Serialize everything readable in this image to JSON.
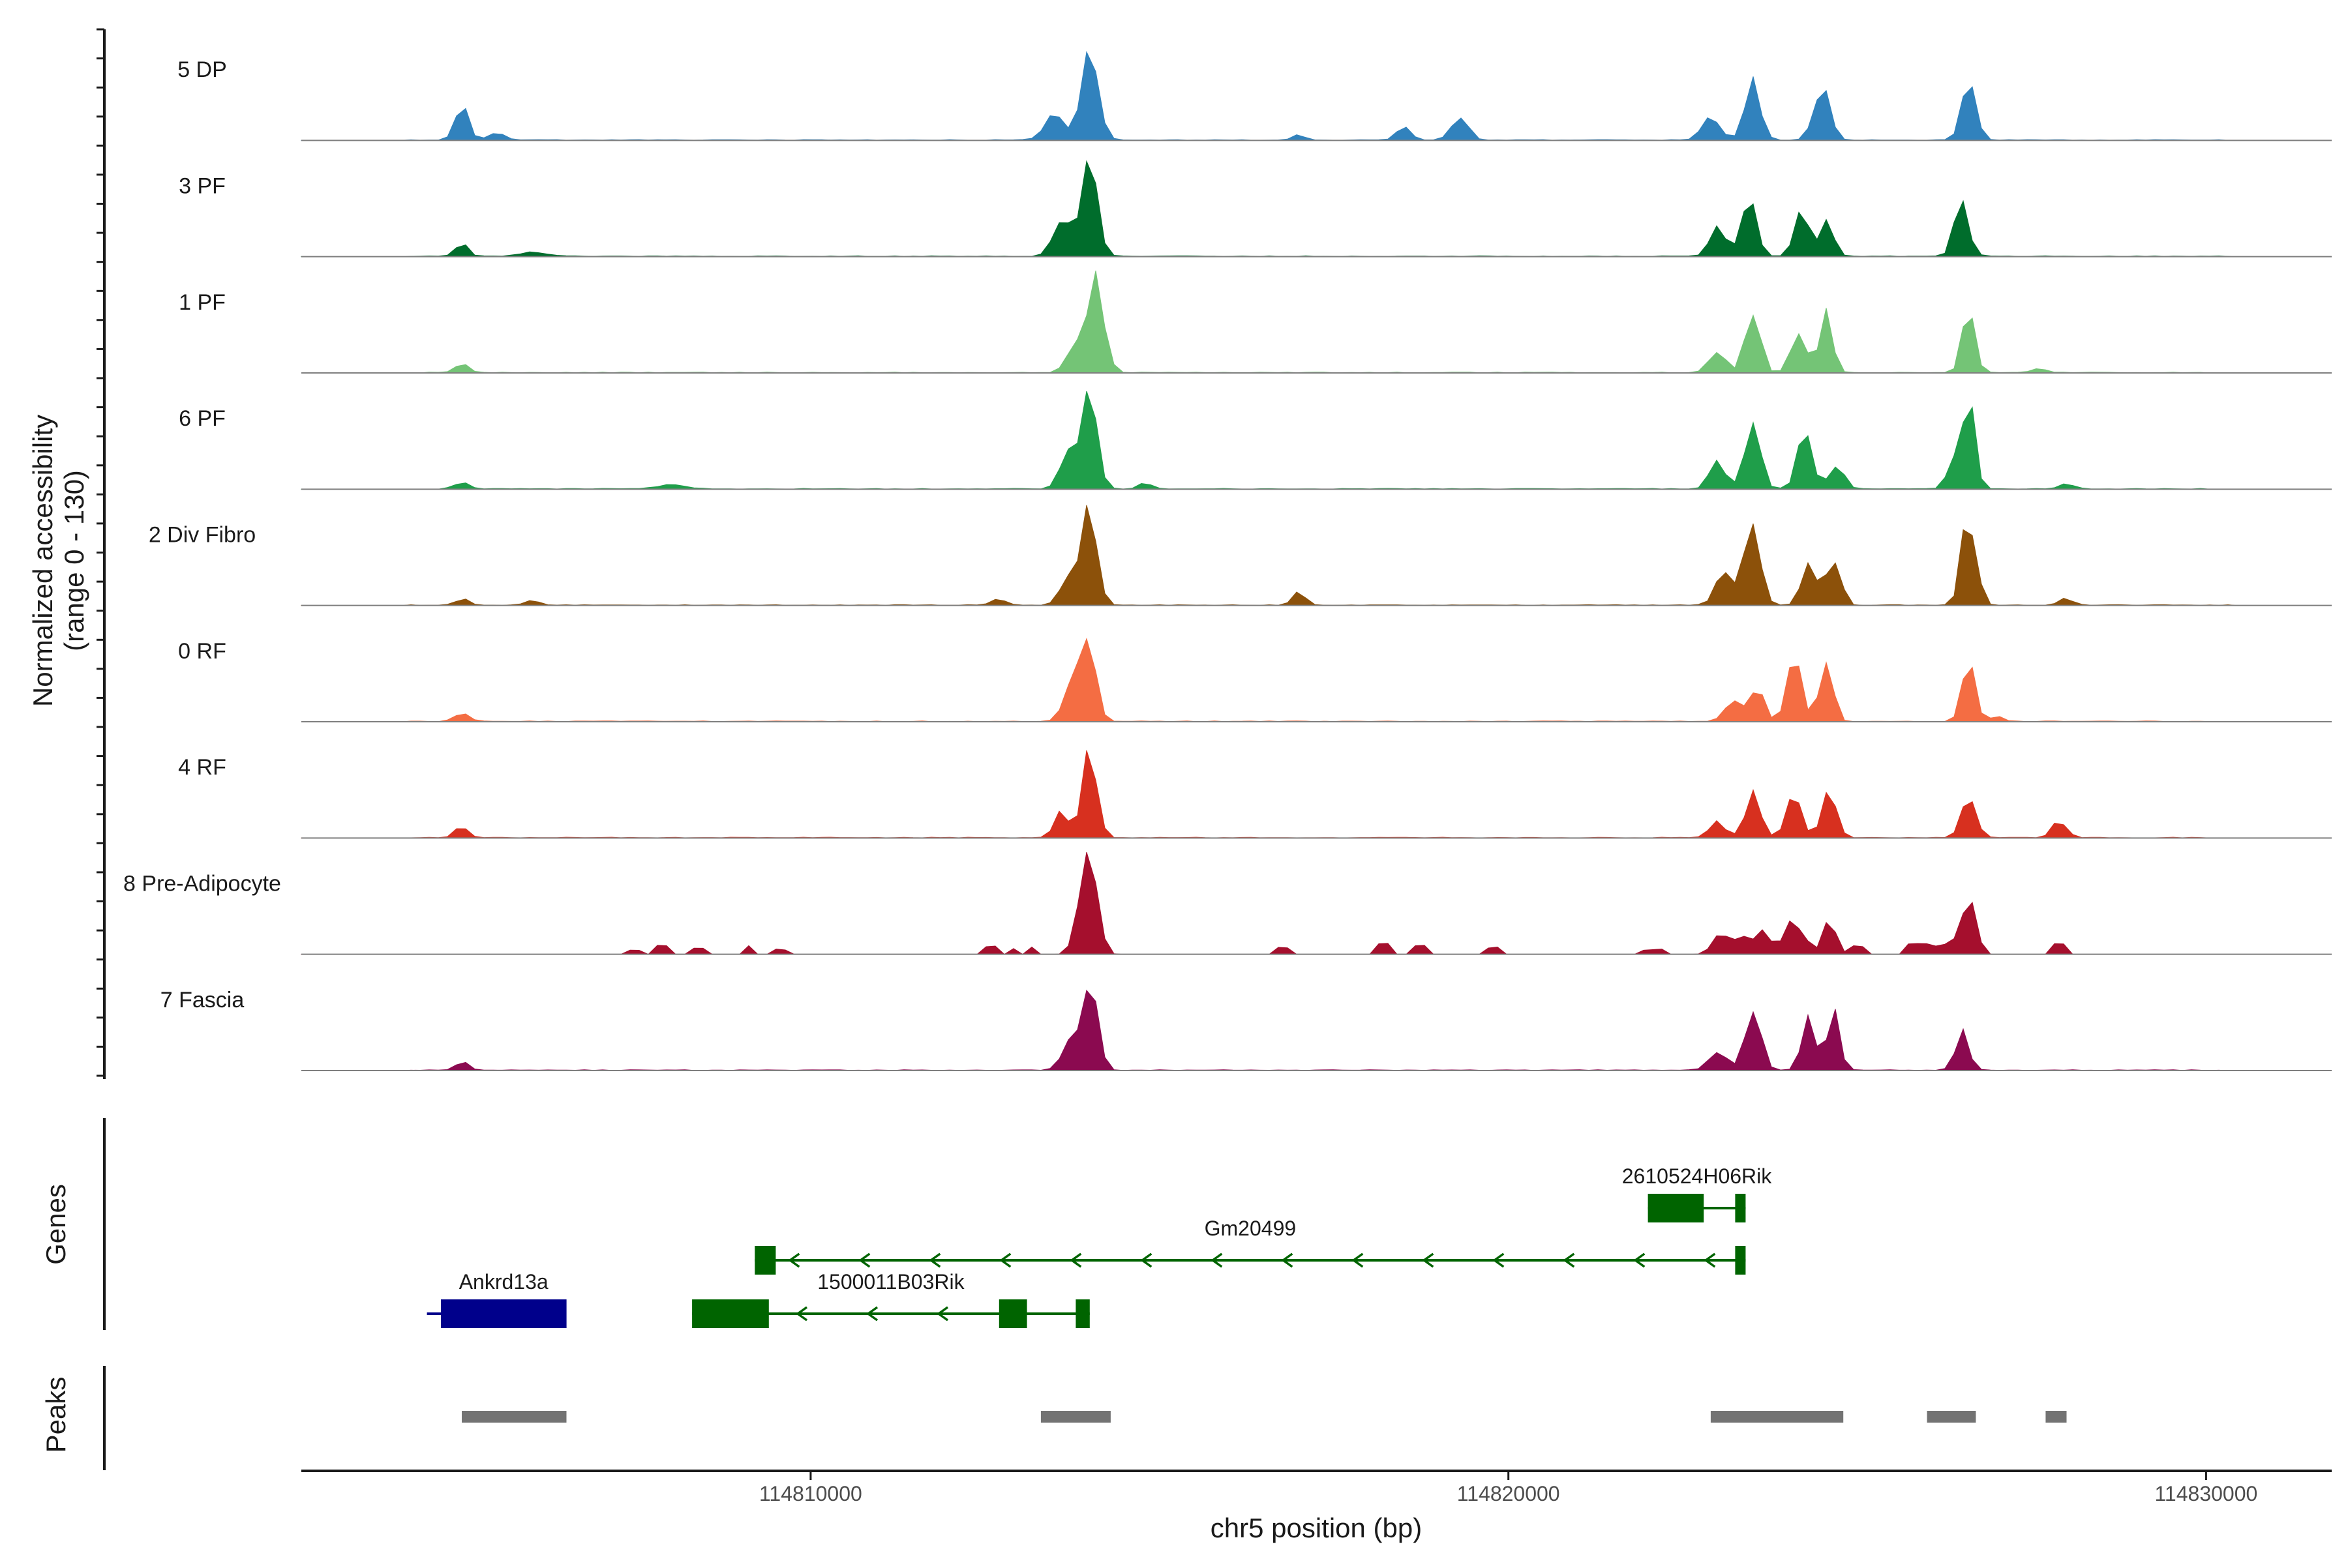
{
  "chart_data": {
    "type": "area",
    "description_panels": [
      "coverage",
      "genes",
      "peaks"
    ],
    "xlabel": "chr5 position (bp)",
    "ylabel": "Normalized accessibility\n(range 0 - 130)",
    "ylabel_lines": [
      "Normalized accessibility",
      "(range 0 - 130)"
    ],
    "ylim": [
      0,
      130
    ],
    "xlim": [
      114802700,
      114831800
    ],
    "x_ticks": [
      114810000,
      114820000,
      114830000
    ],
    "x_tick_labels": [
      "114810000",
      "114820000",
      "114830000"
    ],
    "genes_label": "Genes",
    "peaks_label": "Peaks",
    "tracks": [
      {
        "name": "5 DP",
        "color": "#3182bd",
        "baseline": 0.5,
        "noise_start": 114804200,
        "noise_end": 114830300,
        "peaks": [
          [
            114805000,
            90,
            50,
            0.45
          ],
          [
            114805500,
            120,
            8,
            0.07
          ],
          [
            114813500,
            140,
            32,
            0.22
          ],
          [
            114814000,
            120,
            110,
            0.9
          ],
          [
            114817000,
            80,
            6,
            0.04
          ],
          [
            114818500,
            100,
            15,
            0.14
          ],
          [
            114819300,
            120,
            28,
            0.25
          ],
          [
            114822900,
            120,
            30,
            0.25
          ],
          [
            114823500,
            110,
            70,
            0.6
          ],
          [
            114824500,
            110,
            75,
            0.65
          ],
          [
            114826600,
            100,
            65,
            0.58
          ]
        ]
      },
      {
        "name": "3 PF",
        "color": "#006d2c",
        "baseline": 0.5,
        "noise_start": 114804200,
        "noise_end": 114830400,
        "peaks": [
          [
            114805000,
            90,
            15,
            0.12
          ],
          [
            114806000,
            200,
            5,
            0.05
          ],
          [
            114813600,
            120,
            45,
            0.38
          ],
          [
            114814000,
            110,
            120,
            1.0
          ],
          [
            114823000,
            110,
            35,
            0.28
          ],
          [
            114823450,
            110,
            70,
            0.6
          ],
          [
            114824200,
            100,
            55,
            0.48
          ],
          [
            114824550,
            100,
            45,
            0.4
          ],
          [
            114826500,
            100,
            70,
            0.62
          ]
        ]
      },
      {
        "name": "1 PF",
        "color": "#74c476",
        "baseline": 0.5,
        "noise_start": 114804500,
        "noise_end": 114830000,
        "peaks": [
          [
            114805000,
            90,
            12,
            0.1
          ],
          [
            114813800,
            120,
            40,
            0.34
          ],
          [
            114814100,
            110,
            110,
            0.92
          ],
          [
            114823000,
            120,
            25,
            0.2
          ],
          [
            114823500,
            100,
            80,
            0.7
          ],
          [
            114824150,
            100,
            55,
            0.48
          ],
          [
            114824550,
            90,
            75,
            0.65
          ],
          [
            114826600,
            90,
            75,
            0.65
          ],
          [
            114827600,
            100,
            6,
            0.05
          ]
        ]
      },
      {
        "name": "6 PF",
        "color": "#1f9e4a",
        "baseline": 0.5,
        "noise_start": 114804700,
        "noise_end": 114830000,
        "peaks": [
          [
            114805000,
            100,
            8,
            0.07
          ],
          [
            114808000,
            200,
            5,
            0.04
          ],
          [
            114813700,
            120,
            45,
            0.38
          ],
          [
            114814000,
            110,
            110,
            0.9
          ],
          [
            114814800,
            90,
            8,
            0.07
          ],
          [
            114823000,
            110,
            35,
            0.28
          ],
          [
            114823500,
            110,
            80,
            0.7
          ],
          [
            114824250,
            110,
            65,
            0.55
          ],
          [
            114824700,
            100,
            30,
            0.26
          ],
          [
            114826400,
            100,
            40,
            0.34
          ],
          [
            114826600,
            90,
            110,
            0.95
          ],
          [
            114828000,
            100,
            6,
            0.05
          ]
        ]
      },
      {
        "name": "2 Div Fibro",
        "color": "#8c510a",
        "baseline": 0.5,
        "noise_start": 114804200,
        "noise_end": 114830400,
        "peaks": [
          [
            114805000,
            90,
            8,
            0.07
          ],
          [
            114806000,
            100,
            5,
            0.05
          ],
          [
            114812700,
            100,
            8,
            0.07
          ],
          [
            114813700,
            120,
            40,
            0.34
          ],
          [
            114814000,
            110,
            115,
            0.95
          ],
          [
            114817000,
            90,
            15,
            0.14
          ],
          [
            114823100,
            120,
            40,
            0.34
          ],
          [
            114823500,
            110,
            100,
            0.85
          ],
          [
            114824300,
            100,
            60,
            0.5
          ],
          [
            114824650,
            100,
            65,
            0.55
          ],
          [
            114826600,
            100,
            110,
            0.92
          ],
          [
            114828000,
            100,
            8,
            0.07
          ]
        ]
      },
      {
        "name": "0 RF",
        "color": "#f46d43",
        "baseline": 0.5,
        "noise_start": 114804200,
        "noise_end": 114830300,
        "peaks": [
          [
            114805000,
            100,
            12,
            0.1
          ],
          [
            114813800,
            130,
            60,
            0.5
          ],
          [
            114814000,
            100,
            90,
            0.8
          ],
          [
            114823200,
            110,
            25,
            0.22
          ],
          [
            114823550,
            100,
            45,
            0.38
          ],
          [
            114824100,
            100,
            80,
            0.7
          ],
          [
            114824550,
            90,
            85,
            0.75
          ],
          [
            114826600,
            90,
            80,
            0.7
          ],
          [
            114827000,
            100,
            6,
            0.05
          ]
        ]
      },
      {
        "name": "4 RF",
        "color": "#d7301f",
        "baseline": 0.5,
        "noise_start": 114804200,
        "noise_end": 114830000,
        "peaks": [
          [
            114805000,
            90,
            15,
            0.13
          ],
          [
            114813600,
            100,
            30,
            0.25
          ],
          [
            114814000,
            100,
            110,
            0.95
          ],
          [
            114823000,
            110,
            20,
            0.17
          ],
          [
            114823500,
            110,
            50,
            0.42
          ],
          [
            114824100,
            100,
            60,
            0.5
          ],
          [
            114824600,
            100,
            55,
            0.46
          ],
          [
            114826600,
            100,
            50,
            0.44
          ],
          [
            114827900,
            100,
            22,
            0.2
          ]
        ]
      },
      {
        "name": "8 Pre-Adipocyte",
        "color": "#a50f2d",
        "baseline": 0,
        "noise_start": 114807200,
        "noise_end": 114828000,
        "blocks": [
          [
            114807300,
            114807600,
            6
          ],
          [
            114807800,
            114808000,
            10
          ],
          [
            114808200,
            114808500,
            8
          ],
          [
            114809000,
            114809200,
            10
          ],
          [
            114809500,
            114809700,
            6
          ],
          [
            114809900,
            114810000,
            5
          ],
          [
            114812500,
            114812700,
            10
          ],
          [
            114812800,
            114813000,
            8
          ],
          [
            114813100,
            114813300,
            10
          ],
          [
            114816700,
            114816900,
            8
          ],
          [
            114818100,
            114818300,
            12
          ],
          [
            114818600,
            114818800,
            10
          ],
          [
            114819600,
            114819900,
            8
          ],
          [
            114821900,
            114822200,
            6
          ],
          [
            114822900,
            114823400,
            20
          ],
          [
            114823700,
            114824000,
            18
          ],
          [
            114824200,
            114824400,
            15
          ],
          [
            114824900,
            114825200,
            10
          ],
          [
            114825700,
            114826400,
            12
          ],
          [
            114827700,
            114828000,
            14
          ]
        ],
        "peaks": [
          [
            114813900,
            110,
            40,
            0.34
          ],
          [
            114814000,
            110,
            110,
            0.95
          ],
          [
            114823000,
            100,
            20,
            0.17
          ],
          [
            114823600,
            100,
            30,
            0.26
          ],
          [
            114824100,
            100,
            45,
            0.4
          ],
          [
            114824600,
            100,
            40,
            0.35
          ],
          [
            114826500,
            100,
            40,
            0.35
          ],
          [
            114826650,
            80,
            45,
            0.4
          ]
        ]
      },
      {
        "name": "7 Fascia",
        "color": "#8b0a50",
        "baseline": 0.5,
        "noise_start": 114804200,
        "noise_end": 114830200,
        "peaks": [
          [
            114805000,
            90,
            10,
            0.09
          ],
          [
            114813700,
            120,
            30,
            0.25
          ],
          [
            114814000,
            110,
            110,
            0.95
          ],
          [
            114823000,
            120,
            25,
            0.2
          ],
          [
            114823500,
            110,
            80,
            0.7
          ],
          [
            114824300,
            100,
            60,
            0.52
          ],
          [
            114824650,
            90,
            70,
            0.6
          ],
          [
            114826500,
            100,
            45,
            0.4
          ]
        ]
      }
    ],
    "genes": [
      {
        "name": "Ankrd13a",
        "color": "#00008b",
        "strand": "+",
        "line": [
          114804500,
          114806500
        ],
        "exons": [
          [
            114804700,
            114806500
          ]
        ],
        "row": 0
      },
      {
        "name": "1500011B03Rik",
        "color": "#006400",
        "strand": "-",
        "line": [
          114808300,
          114814000
        ],
        "exons": [
          [
            114808300,
            114809400
          ],
          [
            114812700,
            114813100
          ],
          [
            114813800,
            114814000
          ]
        ],
        "row": 0
      },
      {
        "name": "Gm20499",
        "color": "#006400",
        "strand": "-",
        "line": [
          114809200,
          114823400
        ],
        "exons": [
          [
            114809200,
            114809500
          ],
          [
            114823250,
            114823400
          ]
        ],
        "row": 1
      },
      {
        "name": "2610524H06Rik",
        "color": "#006400",
        "strand": "-",
        "line": [
          114822000,
          114823400
        ],
        "exons": [
          [
            114822000,
            114822800
          ],
          [
            114823250,
            114823400
          ]
        ],
        "row": 2
      }
    ],
    "peaks": [
      [
        114805000,
        114806500
      ],
      [
        114813300,
        114814300
      ],
      [
        114822900,
        114824800
      ],
      [
        114826000,
        114826700
      ],
      [
        114827700,
        114828000
      ]
    ]
  }
}
